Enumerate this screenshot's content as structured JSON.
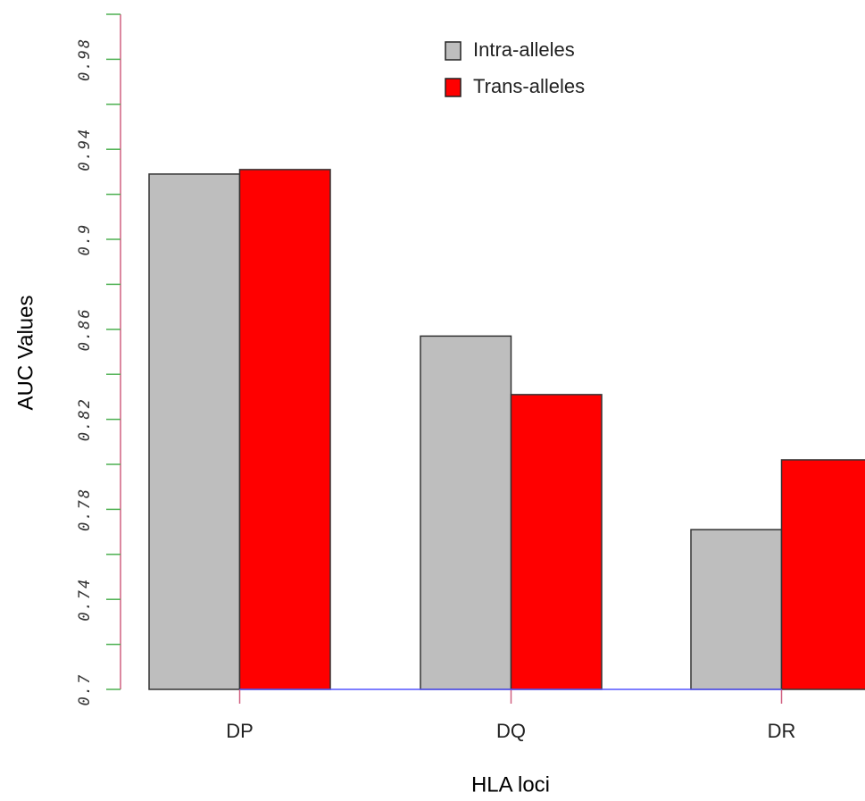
{
  "chart_data": {
    "type": "bar",
    "categories": [
      "DP",
      "DQ",
      "DR"
    ],
    "series": [
      {
        "name": "Intra-alleles",
        "color": "#bebebe",
        "values": [
          0.929,
          0.857,
          0.771
        ]
      },
      {
        "name": "Trans-alleles",
        "color": "#ff0000",
        "values": [
          0.931,
          0.831,
          0.802
        ]
      }
    ],
    "x_label": "HLA loci",
    "y_label": "AUC Values",
    "ylim": [
      0.7,
      1.0
    ],
    "yticks": [
      0.7,
      0.74,
      0.78,
      0.82,
      0.86,
      0.9,
      0.94,
      0.98
    ],
    "minor_yticks": [
      0.72,
      0.76,
      0.8,
      0.84,
      0.88,
      0.92,
      0.96,
      1.0
    ],
    "legend": "top-right"
  }
}
